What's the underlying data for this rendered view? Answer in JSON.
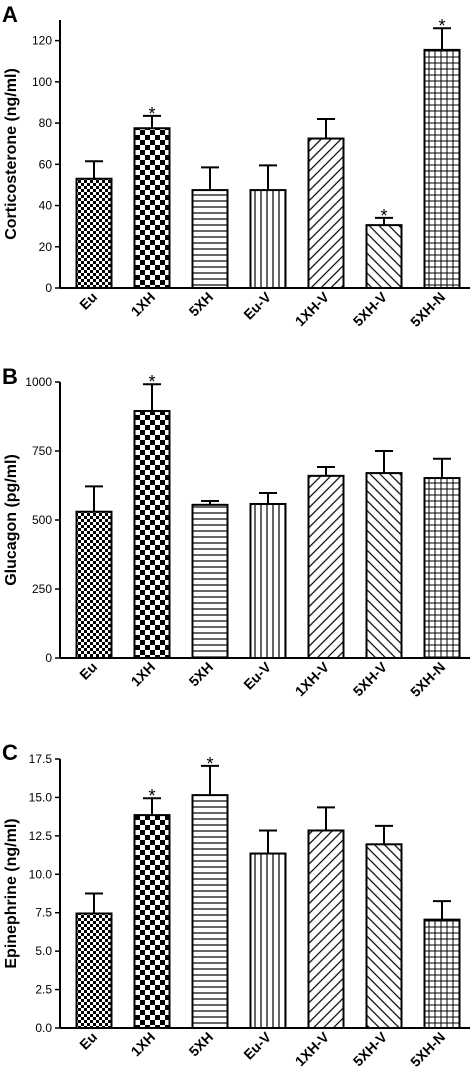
{
  "chart_data": [
    {
      "panel_label": "A",
      "type": "bar",
      "ylabel": "Corticosterone  (ng/ml)",
      "xlabel": "",
      "categories": [
        "Eu",
        "1XH",
        "5XH",
        "Eu-V",
        "1XH-V",
        "5XH-V",
        "5XH-N"
      ],
      "values": [
        53,
        77.5,
        47.5,
        47.5,
        72.5,
        30.5,
        115.5
      ],
      "errors": [
        8.5,
        6,
        11,
        12,
        9.5,
        3.5,
        10.5
      ],
      "significant": [
        false,
        true,
        false,
        false,
        false,
        true,
        true
      ],
      "sig_marker": "*",
      "ylim": [
        0,
        130
      ],
      "yticks": [
        0,
        20,
        40,
        60,
        80,
        100,
        120
      ],
      "yticklabels": [
        "0",
        "20",
        "40",
        "60",
        "80",
        "100",
        "120"
      ],
      "patterns": [
        "checker-fine",
        "checker-coarse",
        "horizontal",
        "vertical",
        "diag-up",
        "diag-down",
        "grid"
      ]
    },
    {
      "panel_label": "B",
      "type": "bar",
      "ylabel": "Glucagon (pg/ml)",
      "xlabel": "",
      "categories": [
        "Eu",
        "1XH",
        "5XH",
        "Eu-V",
        "1XH-V",
        "5XH-V",
        "5XH-N"
      ],
      "values": [
        530,
        895,
        555,
        558,
        660,
        670,
        652
      ],
      "errors": [
        92,
        97,
        14,
        40,
        32,
        80,
        70
      ],
      "significant": [
        false,
        true,
        false,
        false,
        false,
        false,
        false
      ],
      "sig_marker": "*",
      "ylim": [
        0,
        1000
      ],
      "yticks": [
        0,
        250,
        500,
        750,
        1000
      ],
      "yticklabels": [
        "0",
        "250",
        "500",
        "750",
        "1000"
      ],
      "patterns": [
        "checker-fine",
        "checker-coarse",
        "horizontal",
        "vertical",
        "diag-up",
        "diag-down",
        "grid"
      ]
    },
    {
      "panel_label": "C",
      "type": "bar",
      "ylabel": "Epinephrine (ng/ml)",
      "xlabel": "",
      "categories": [
        "Eu",
        "1XH",
        "5XH",
        "Eu-V",
        "1XH-V",
        "5XH-V",
        "5XH-N"
      ],
      "values": [
        7.45,
        13.85,
        15.15,
        11.35,
        12.85,
        11.95,
        7.05
      ],
      "errors": [
        1.3,
        1.1,
        1.9,
        1.5,
        1.5,
        1.2,
        1.2
      ],
      "significant": [
        false,
        true,
        true,
        false,
        false,
        false,
        false
      ],
      "sig_marker": "*",
      "ylim": [
        0,
        17.5
      ],
      "yticks": [
        0,
        2.5,
        5,
        7.5,
        10,
        12.5,
        15,
        17.5
      ],
      "yticklabels": [
        "0.0",
        "2.5",
        "5.0",
        "7.5",
        "10.0",
        "12.5",
        "15.0",
        "17.5"
      ],
      "patterns": [
        "checker-fine",
        "checker-coarse",
        "horizontal",
        "vertical",
        "diag-up",
        "diag-down",
        "grid"
      ]
    }
  ]
}
